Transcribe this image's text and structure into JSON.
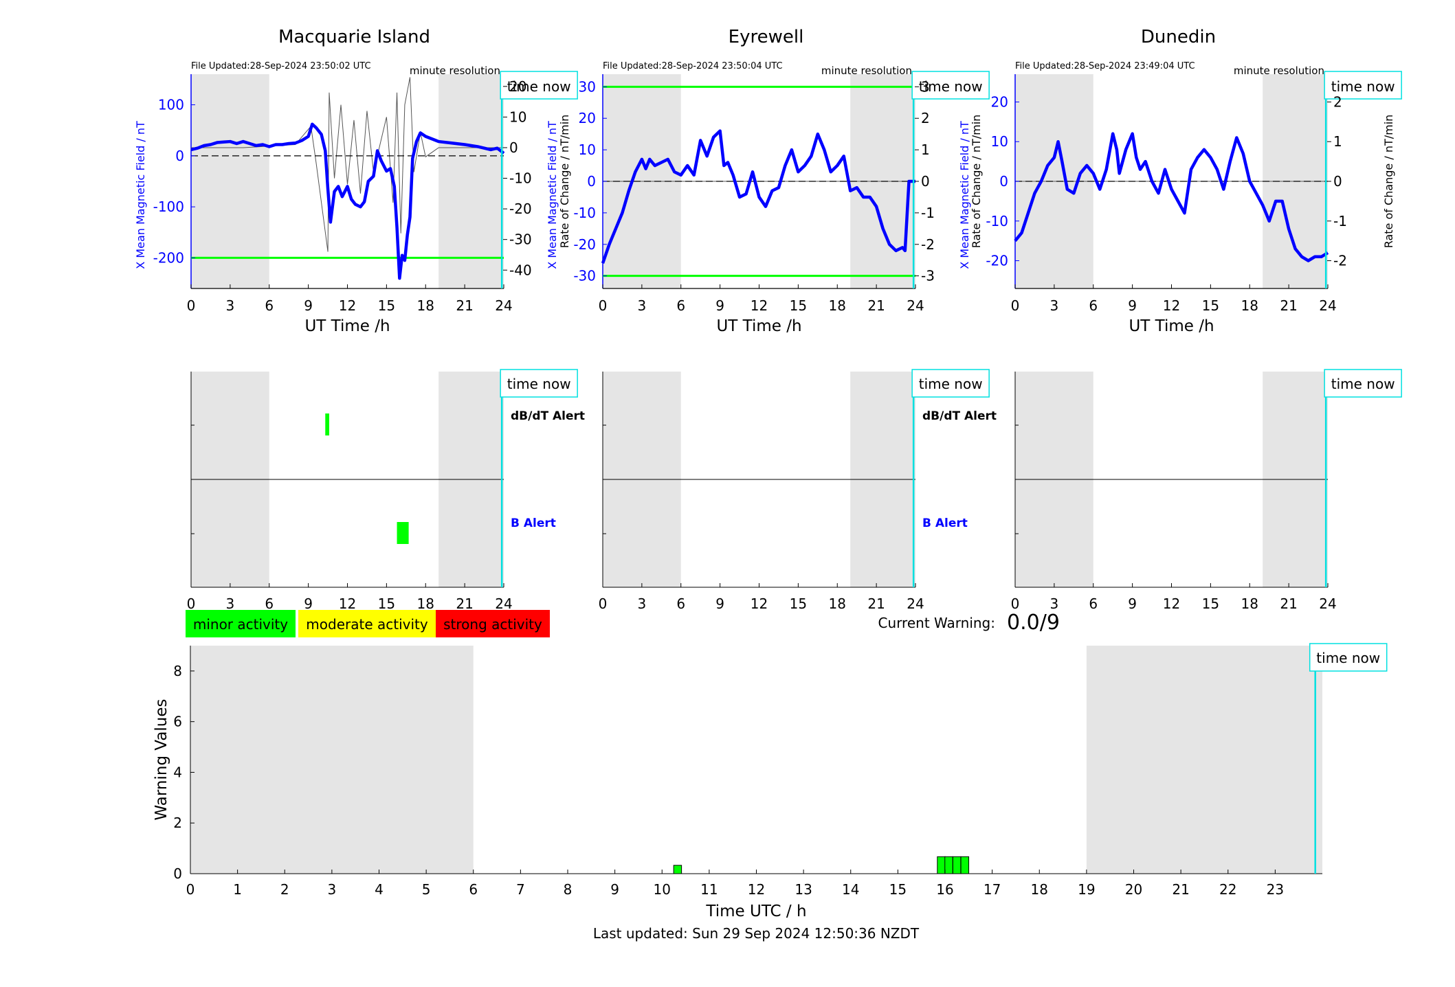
{
  "colors": {
    "field": "#0000ff",
    "rate": "#555555",
    "threshold": "#00ff00",
    "now": "#00e0e0",
    "shade": "#e5e5e5",
    "minor": "#00ff00",
    "moderate": "#ffff00",
    "strong": "#ff0000",
    "db_alert_label": "#000000",
    "b_alert_label": "#0000ff"
  },
  "stations": [
    {
      "name": "Macquarie Island",
      "file_updated": "File Updated:28-Sep-2024 23:50:02 UTC",
      "resolution": "minute resolution",
      "time_now": "time now",
      "left_label": "X Mean Magnetic Field / nT",
      "right_label": "Rate of Change / nT/min",
      "xlabel": "UT Time /h",
      "yl": [
        -260,
        160
      ],
      "yr": [
        -46,
        24
      ],
      "yl_ticks": [
        "100",
        "0",
        "-100",
        "-200"
      ],
      "yr_ticks": [
        "20",
        "10",
        "0",
        "-10",
        "-20",
        "-30",
        "-40"
      ],
      "thresholds": [
        -200
      ],
      "x_ticks": [
        "0",
        "3",
        "6",
        "9",
        "12",
        "15",
        "18",
        "21",
        "24"
      ],
      "field_series": [
        [
          0,
          12
        ],
        [
          0.5,
          15
        ],
        [
          1,
          20
        ],
        [
          1.5,
          22
        ],
        [
          2,
          26
        ],
        [
          2.5,
          27
        ],
        [
          3,
          28
        ],
        [
          3.5,
          24
        ],
        [
          4,
          28
        ],
        [
          4.5,
          24
        ],
        [
          5,
          20
        ],
        [
          5.5,
          22
        ],
        [
          6,
          18
        ],
        [
          6.5,
          22
        ],
        [
          7,
          22
        ],
        [
          7.5,
          24
        ],
        [
          8,
          25
        ],
        [
          8.5,
          30
        ],
        [
          9,
          38
        ],
        [
          9.3,
          62
        ],
        [
          9.6,
          55
        ],
        [
          10,
          42
        ],
        [
          10.3,
          10
        ],
        [
          10.5,
          -65
        ],
        [
          10.7,
          -130
        ],
        [
          11,
          -70
        ],
        [
          11.3,
          -60
        ],
        [
          11.6,
          -80
        ],
        [
          12,
          -60
        ],
        [
          12.3,
          -85
        ],
        [
          12.6,
          -95
        ],
        [
          13,
          -100
        ],
        [
          13.3,
          -90
        ],
        [
          13.6,
          -50
        ],
        [
          14,
          -40
        ],
        [
          14.3,
          10
        ],
        [
          14.6,
          -10
        ],
        [
          15,
          -30
        ],
        [
          15.3,
          -25
        ],
        [
          15.6,
          -60
        ],
        [
          15.8,
          -140
        ],
        [
          16,
          -240
        ],
        [
          16.2,
          -195
        ],
        [
          16.4,
          -205
        ],
        [
          16.6,
          -155
        ],
        [
          16.8,
          -120
        ],
        [
          17,
          -5
        ],
        [
          17.3,
          28
        ],
        [
          17.6,
          45
        ],
        [
          18,
          38
        ],
        [
          19,
          28
        ],
        [
          20,
          25
        ],
        [
          21,
          22
        ],
        [
          22,
          18
        ],
        [
          22.5,
          15
        ],
        [
          23,
          12
        ],
        [
          23.5,
          15
        ],
        [
          24,
          5
        ]
      ],
      "rate_series": [
        [
          0,
          0
        ],
        [
          4,
          0
        ],
        [
          8,
          1
        ],
        [
          9.2,
          7
        ],
        [
          9.6,
          -5
        ],
        [
          10.5,
          -34
        ],
        [
          10.6,
          18
        ],
        [
          11,
          -10
        ],
        [
          11.5,
          14
        ],
        [
          12,
          -12
        ],
        [
          12.5,
          9
        ],
        [
          13,
          -15
        ],
        [
          13.5,
          12
        ],
        [
          14,
          -8
        ],
        [
          15,
          10
        ],
        [
          15.5,
          -18
        ],
        [
          15.8,
          18
        ],
        [
          16.1,
          -28
        ],
        [
          16.4,
          14
        ],
        [
          16.8,
          23
        ],
        [
          17.1,
          -8
        ],
        [
          17.6,
          5
        ],
        [
          18,
          -3
        ],
        [
          19,
          0
        ],
        [
          24,
          0
        ]
      ],
      "shade": [
        [
          0,
          6
        ],
        [
          19,
          24
        ]
      ],
      "alerts": {
        "dbdt_label": "dB/dT Alert",
        "b_label": "B Alert",
        "dbdt": [
          [
            10.3,
            10.6
          ]
        ],
        "b": [
          [
            15.8,
            16.7
          ]
        ]
      }
    },
    {
      "name": "Eyrewell",
      "file_updated": "File Updated:28-Sep-2024 23:50:04 UTC",
      "resolution": "minute resolution",
      "time_now": "time now",
      "left_label": "X Mean Magnetic Field / nT",
      "right_label": "Rate of Change / nT/min",
      "xlabel": "UT Time /h",
      "yl": [
        -34,
        34
      ],
      "yr": [
        -3.4,
        3.4
      ],
      "yl_ticks": [
        "30",
        "20",
        "10",
        "0",
        "-10",
        "-20",
        "-30"
      ],
      "yr_ticks": [
        "3",
        "2",
        "1",
        "0",
        "-1",
        "-2",
        "-3"
      ],
      "thresholds": [
        30,
        -30
      ],
      "x_ticks": [
        "0",
        "3",
        "6",
        "9",
        "12",
        "15",
        "18",
        "21",
        "24"
      ],
      "field_series": [
        [
          0,
          -26
        ],
        [
          0.5,
          -20
        ],
        [
          1,
          -15
        ],
        [
          1.5,
          -10
        ],
        [
          2,
          -3
        ],
        [
          2.5,
          3
        ],
        [
          3,
          7
        ],
        [
          3.3,
          4
        ],
        [
          3.6,
          7
        ],
        [
          4,
          5
        ],
        [
          4.5,
          6
        ],
        [
          5,
          7
        ],
        [
          5.5,
          3
        ],
        [
          6,
          2
        ],
        [
          6.5,
          5
        ],
        [
          7,
          2
        ],
        [
          7.5,
          13
        ],
        [
          7.8,
          10
        ],
        [
          8,
          8
        ],
        [
          8.5,
          14
        ],
        [
          9,
          16
        ],
        [
          9.3,
          5
        ],
        [
          9.6,
          6
        ],
        [
          10,
          2
        ],
        [
          10.5,
          -5
        ],
        [
          11,
          -4
        ],
        [
          11.5,
          3
        ],
        [
          12,
          -5
        ],
        [
          12.5,
          -8
        ],
        [
          13,
          -3
        ],
        [
          13.5,
          -2
        ],
        [
          14,
          5
        ],
        [
          14.5,
          10
        ],
        [
          15,
          3
        ],
        [
          15.5,
          5
        ],
        [
          16,
          8
        ],
        [
          16.5,
          15
        ],
        [
          17,
          10
        ],
        [
          17.5,
          3
        ],
        [
          18,
          5
        ],
        [
          18.5,
          8
        ],
        [
          19,
          -3
        ],
        [
          19.5,
          -2
        ],
        [
          20,
          -5
        ],
        [
          20.5,
          -5
        ],
        [
          21,
          -8
        ],
        [
          21.5,
          -15
        ],
        [
          22,
          -20
        ],
        [
          22.5,
          -22
        ],
        [
          23,
          -21
        ],
        [
          23.2,
          -22
        ],
        [
          23.5,
          0
        ],
        [
          24,
          0
        ]
      ],
      "rate_series": [
        [
          0,
          0
        ],
        [
          24,
          0
        ]
      ],
      "shade": [
        [
          0,
          6
        ],
        [
          19,
          24
        ]
      ],
      "alerts": {
        "dbdt_label": "dB/dT Alert",
        "b_label": "B Alert",
        "dbdt": [],
        "b": []
      }
    },
    {
      "name": "Dunedin",
      "file_updated": "File Updated:28-Sep-2024 23:49:04 UTC",
      "resolution": "minute resolution",
      "time_now": "time now",
      "left_label": "X Mean Magnetic Field / nT",
      "right_label": "Rate of Change / nT/min",
      "xlabel": "UT Time /h",
      "yl": [
        -27,
        27
      ],
      "yr": [
        -2.7,
        2.7
      ],
      "yl_ticks": [
        "20",
        "10",
        "0",
        "-10",
        "-20"
      ],
      "yr_ticks": [
        "2",
        "1",
        "0",
        "-1",
        "-2"
      ],
      "thresholds": [],
      "x_ticks": [
        "0",
        "3",
        "6",
        "9",
        "12",
        "15",
        "18",
        "21",
        "24"
      ],
      "field_series": [
        [
          0,
          -15
        ],
        [
          0.5,
          -13
        ],
        [
          1,
          -8
        ],
        [
          1.5,
          -3
        ],
        [
          2,
          0
        ],
        [
          2.5,
          4
        ],
        [
          3,
          6
        ],
        [
          3.3,
          10
        ],
        [
          3.6,
          5
        ],
        [
          4,
          -2
        ],
        [
          4.5,
          -3
        ],
        [
          5,
          2
        ],
        [
          5.5,
          4
        ],
        [
          6,
          2
        ],
        [
          6.5,
          -2
        ],
        [
          7,
          3
        ],
        [
          7.5,
          12
        ],
        [
          7.8,
          8
        ],
        [
          8,
          2
        ],
        [
          8.5,
          8
        ],
        [
          9,
          12
        ],
        [
          9.3,
          6
        ],
        [
          9.6,
          3
        ],
        [
          10,
          5
        ],
        [
          10.5,
          0
        ],
        [
          11,
          -3
        ],
        [
          11.5,
          3
        ],
        [
          12,
          -2
        ],
        [
          12.5,
          -5
        ],
        [
          13,
          -8
        ],
        [
          13.5,
          3
        ],
        [
          14,
          6
        ],
        [
          14.5,
          8
        ],
        [
          15,
          6
        ],
        [
          15.5,
          3
        ],
        [
          16,
          -2
        ],
        [
          16.5,
          5
        ],
        [
          17,
          11
        ],
        [
          17.5,
          7
        ],
        [
          18,
          0
        ],
        [
          18.5,
          -3
        ],
        [
          19,
          -6
        ],
        [
          19.5,
          -10
        ],
        [
          20,
          -5
        ],
        [
          20.5,
          -5
        ],
        [
          21,
          -12
        ],
        [
          21.5,
          -17
        ],
        [
          22,
          -19
        ],
        [
          22.5,
          -20
        ],
        [
          23,
          -19
        ],
        [
          23.5,
          -19
        ],
        [
          24,
          -18
        ]
      ],
      "rate_series": [
        [
          0,
          0
        ],
        [
          24,
          0
        ]
      ],
      "shade": [
        [
          0,
          6
        ],
        [
          19,
          24
        ]
      ],
      "alerts": {
        "dbdt_label": "dB/dT Alert",
        "b_label": "B Alert",
        "dbdt": [],
        "b": []
      }
    }
  ],
  "legend": {
    "minor": "minor activity",
    "moderate": "moderate activity",
    "strong": "strong activity"
  },
  "current_warning": {
    "label": "Current Warning:",
    "value": "0.0/9"
  },
  "chart_data": {
    "type": "bar",
    "xlabel": "Time UTC / h",
    "ylabel": "Warning Values",
    "ylim": [
      0,
      9
    ],
    "xlim": [
      0,
      24
    ],
    "x_ticks": [
      "0",
      "1",
      "2",
      "3",
      "4",
      "5",
      "6",
      "7",
      "8",
      "9",
      "10",
      "11",
      "12",
      "13",
      "14",
      "15",
      "16",
      "17",
      "18",
      "19",
      "20",
      "21",
      "22",
      "23"
    ],
    "y_ticks": [
      "0",
      "2",
      "4",
      "6",
      "8"
    ],
    "bars": [
      {
        "x": 10.33,
        "value": 0.33
      },
      {
        "x": 15.92,
        "value": 0.67
      },
      {
        "x": 16.08,
        "value": 0.67
      },
      {
        "x": 16.25,
        "value": 0.67
      },
      {
        "x": 16.42,
        "value": 0.67
      }
    ],
    "shaded_intervals": [
      [
        0,
        6
      ],
      [
        19,
        24
      ]
    ],
    "time_now": "time now",
    "time_now_hour": 23.85
  },
  "footer": "Last updated: Sun 29 Sep 2024 12:50:36 NZDT"
}
